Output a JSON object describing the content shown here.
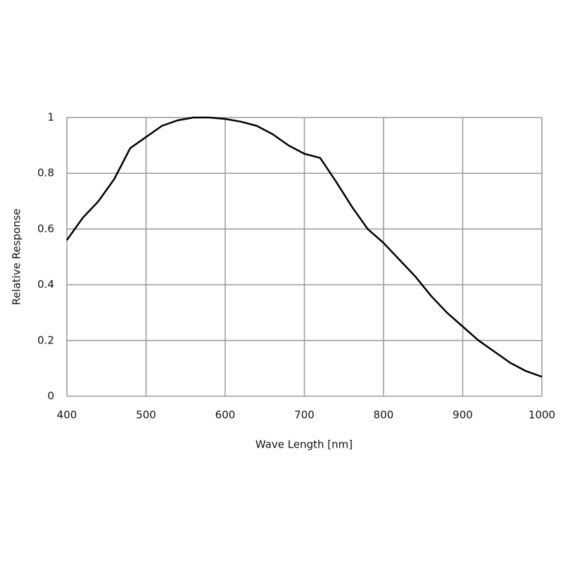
{
  "chart_data": {
    "type": "line",
    "xlabel": "Wave Length [nm]",
    "ylabel": "Relative Response",
    "x": [
      400,
      420,
      440,
      460,
      480,
      500,
      520,
      540,
      560,
      580,
      600,
      620,
      640,
      660,
      680,
      700,
      720,
      740,
      760,
      780,
      800,
      820,
      840,
      860,
      880,
      900,
      920,
      940,
      960,
      980,
      1000
    ],
    "series": [
      {
        "color": "#000000",
        "values": [
          0.56,
          0.64,
          0.7,
          0.78,
          0.89,
          0.93,
          0.97,
          0.99,
          1.0,
          1.0,
          0.995,
          0.985,
          0.97,
          0.94,
          0.9,
          0.87,
          0.855,
          0.77,
          0.68,
          0.6,
          0.55,
          0.49,
          0.43,
          0.36,
          0.3,
          0.25,
          0.2,
          0.16,
          0.12,
          0.09,
          0.07
        ]
      }
    ],
    "xlim": [
      400,
      1000
    ],
    "xticks": [
      400,
      500,
      600,
      700,
      800,
      900,
      1000
    ],
    "ylim": [
      0,
      1
    ],
    "yticks": [
      0,
      0.2,
      0.4,
      0.6,
      0.8,
      1
    ],
    "grid": true
  }
}
